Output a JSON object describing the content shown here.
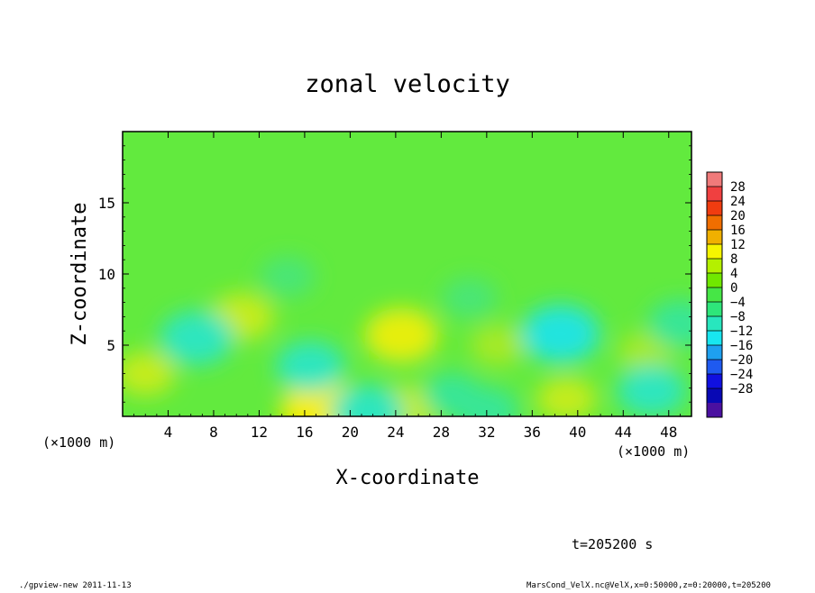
{
  "chart_data": {
    "type": "heatmap",
    "title": "zonal velocity",
    "xlabel": "X-coordinate",
    "ylabel": "Z-coordinate",
    "x_unit": "(×1000 m)",
    "y_unit": "(×1000 m)",
    "xlim": [
      0,
      50
    ],
    "ylim": [
      0,
      20
    ],
    "x_ticks": [
      "4",
      "8",
      "12",
      "16",
      "20",
      "24",
      "28",
      "32",
      "36",
      "40",
      "44",
      "48"
    ],
    "y_ticks": [
      "5",
      "10",
      "15"
    ],
    "colorbar": {
      "levels": [
        "28",
        "24",
        "20",
        "16",
        "12",
        "8",
        "4",
        "0",
        "−4",
        "−8",
        "−12",
        "−16",
        "−20",
        "−24",
        "−28"
      ],
      "colors": [
        "#f07a7a",
        "#f04040",
        "#f03c10",
        "#f06e00",
        "#f0b000",
        "#f5f500",
        "#b4f000",
        "#70e800",
        "#46e646",
        "#2ee67a",
        "#28e6be",
        "#18e6f0",
        "#1ea0f0",
        "#1f5af0",
        "#1010e0",
        "#0808b4",
        "#4a10a0"
      ]
    },
    "field": {
      "background": "#62ea3e",
      "features": [
        {
          "kind": "warm",
          "x": 24.5,
          "z": 5.7,
          "value": 8
        },
        {
          "kind": "warm",
          "x": 10.5,
          "z": 7.0,
          "value": 6
        },
        {
          "kind": "warm",
          "x": 17.5,
          "z": 0.4,
          "value": 10
        },
        {
          "kind": "warm",
          "x": 25.0,
          "z": 0.5,
          "value": 6
        },
        {
          "kind": "warm",
          "x": 2.0,
          "z": 3.0,
          "value": 5
        },
        {
          "kind": "warm",
          "x": 33.0,
          "z": 5.0,
          "value": 4
        },
        {
          "kind": "warm",
          "x": 39.0,
          "z": 1.2,
          "value": 5
        },
        {
          "kind": "warm",
          "x": 46.0,
          "z": 4.5,
          "value": 4
        },
        {
          "kind": "cold",
          "x": 6.5,
          "z": 5.5,
          "value": -8
        },
        {
          "kind": "cold",
          "x": 16.5,
          "z": 3.5,
          "value": -7
        },
        {
          "kind": "cold",
          "x": 38.5,
          "z": 5.8,
          "value": -9
        },
        {
          "kind": "cold",
          "x": 29.0,
          "z": 1.5,
          "value": -5
        },
        {
          "kind": "cold",
          "x": 46.5,
          "z": 1.8,
          "value": -7
        },
        {
          "kind": "cold",
          "x": 49.0,
          "z": 6.5,
          "value": -6
        },
        {
          "kind": "cold",
          "x": 21.5,
          "z": 0.3,
          "value": -8
        },
        {
          "kind": "cold",
          "x": 32.0,
          "z": 0.4,
          "value": -6
        },
        {
          "kind": "cold",
          "x": 30.5,
          "z": 8.3,
          "value": -4
        },
        {
          "kind": "cold",
          "x": 14.5,
          "z": 9.8,
          "value": -4
        }
      ]
    }
  },
  "time_label": "t=205200 s",
  "footer": {
    "left": "./gpview-new  2011-11-13",
    "right": "MarsCond_VelX.nc@VelX,x=0:50000,z=0:20000,t=205200"
  }
}
